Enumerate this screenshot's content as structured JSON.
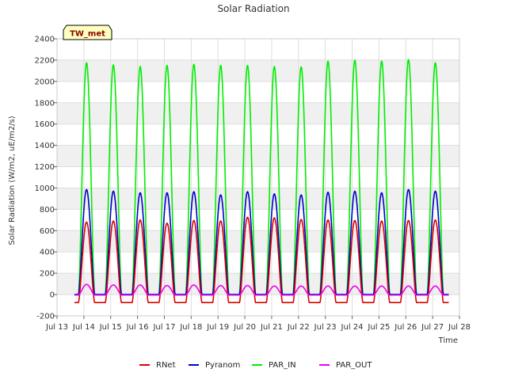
{
  "chart_data": {
    "type": "line",
    "title": "Solar Radiation",
    "xlabel": "Time",
    "ylabel": "Solar Radiation (W/m2, uE/m2/s)",
    "site_label": "TW_met",
    "xlim": [
      13,
      28
    ],
    "ylim": [
      -200,
      2400
    ],
    "x_ticks": [
      "Jul 13",
      "Jul 14",
      "Jul 15",
      "Jul 16",
      "Jul 17",
      "Jul 18",
      "Jul 19",
      "Jul 20",
      "Jul 21",
      "Jul 22",
      "Jul 23",
      "Jul 24",
      "Jul 25",
      "Jul 26",
      "Jul 27",
      "Jul 28"
    ],
    "y_ticks": [
      -200,
      0,
      200,
      400,
      600,
      800,
      1000,
      1200,
      1400,
      1600,
      1800,
      2000,
      2200,
      2400
    ],
    "grid": true,
    "legend_position": "bottom",
    "day_peak_times": [
      14.1,
      15.1,
      16.1,
      17.1,
      18.1,
      19.1,
      20.1,
      21.1,
      22.1,
      23.1,
      24.1,
      25.1,
      26.1,
      27.1
    ],
    "series": [
      {
        "name": "RNet",
        "color": "#dd0000",
        "night_value": -75,
        "peaks": [
          680,
          690,
          700,
          670,
          695,
          690,
          725,
          720,
          705,
          700,
          695,
          690,
          695,
          700
        ]
      },
      {
        "name": "Pyranom",
        "color": "#0000cc",
        "night_value": 0,
        "peaks": [
          985,
          970,
          955,
          955,
          965,
          935,
          965,
          945,
          935,
          960,
          970,
          955,
          985,
          970
        ]
      },
      {
        "name": "PAR_IN",
        "color": "#00ee00",
        "night_value": 0,
        "peaks": [
          2175,
          2155,
          2140,
          2150,
          2160,
          2150,
          2150,
          2140,
          2135,
          2190,
          2200,
          2190,
          2205,
          2175
        ]
      },
      {
        "name": "PAR_OUT",
        "color": "#ee00ee",
        "night_value": -5,
        "peaks": [
          95,
          90,
          90,
          85,
          90,
          85,
          85,
          80,
          80,
          80,
          80,
          80,
          80,
          80
        ]
      }
    ]
  }
}
